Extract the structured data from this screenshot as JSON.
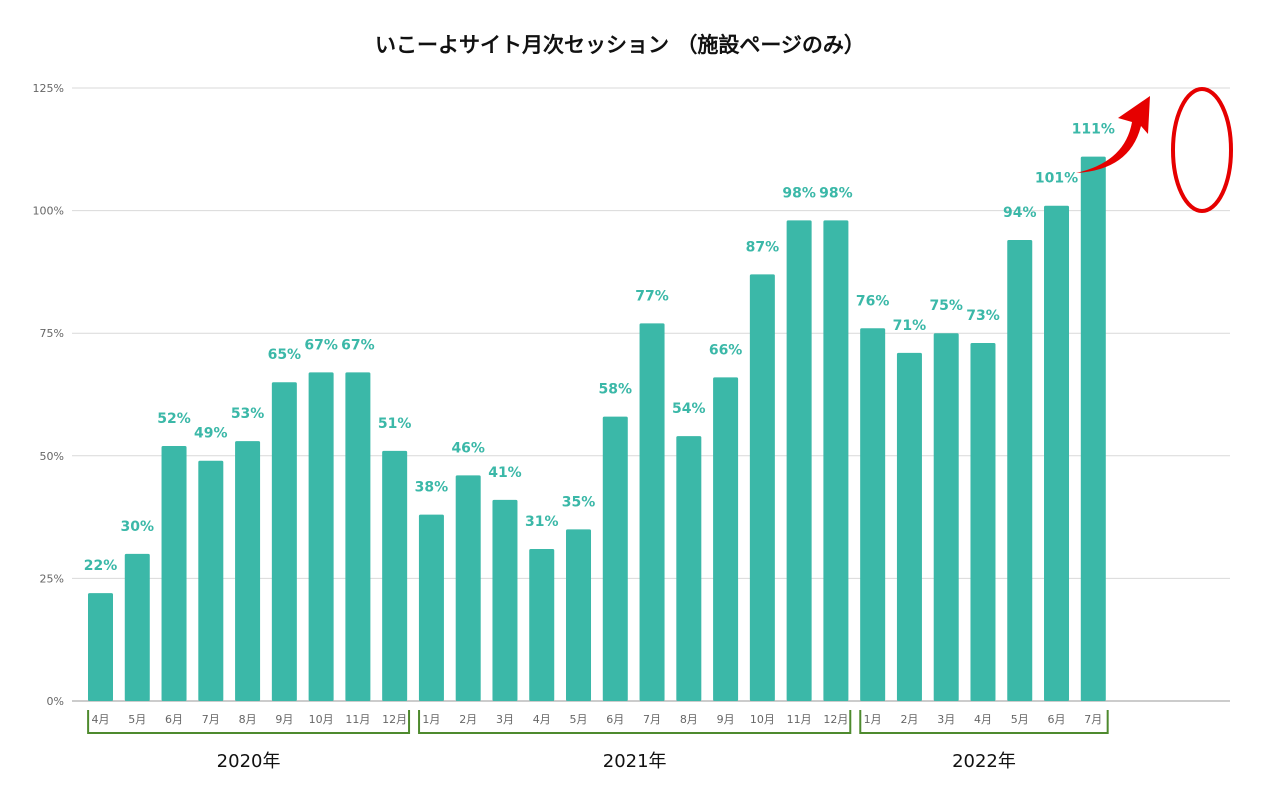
{
  "chart_data": {
    "type": "bar",
    "title": "いこーよサイト月次セッション （施設ページのみ）",
    "categories": [
      "4月",
      "5月",
      "6月",
      "7月",
      "8月",
      "9月",
      "10月",
      "11月",
      "12月",
      "1月",
      "2月",
      "3月",
      "4月",
      "5月",
      "6月",
      "7月",
      "8月",
      "9月",
      "10月",
      "11月",
      "12月",
      "1月",
      "2月",
      "3月",
      "4月",
      "5月",
      "6月",
      "7月"
    ],
    "values": [
      22,
      30,
      52,
      49,
      53,
      65,
      67,
      67,
      51,
      38,
      46,
      41,
      31,
      35,
      58,
      77,
      54,
      66,
      87,
      98,
      98,
      76,
      71,
      75,
      73,
      94,
      101,
      111
    ],
    "data_labels": [
      "22%",
      "30%",
      "52%",
      "49%",
      "53%",
      "65%",
      "67%",
      "67%",
      "51%",
      "38%",
      "46%",
      "41%",
      "31%",
      "35%",
      "58%",
      "77%",
      "54%",
      "66%",
      "87%",
      "98%",
      "98%",
      "76%",
      "71%",
      "75%",
      "73%",
      "94%",
      "101%",
      "111%"
    ],
    "groups": [
      {
        "label": "2020年",
        "start": 0,
        "end": 8
      },
      {
        "label": "2021年",
        "start": 9,
        "end": 20
      },
      {
        "label": "2022年",
        "start": 21,
        "end": 27
      }
    ],
    "yticks": [
      "0%",
      "25%",
      "50%",
      "75%",
      "100%",
      "125%"
    ],
    "ylim": [
      0,
      125
    ],
    "grid": true,
    "legend": "none",
    "colors": {
      "bar": "#3bb8a8",
      "label": "#3bb8a8",
      "bracket": "#4e8a2e",
      "highlight": "#e00000"
    },
    "annotations": [
      "red arrow pointing up-right",
      "red ellipse around last bar (111%)"
    ]
  }
}
